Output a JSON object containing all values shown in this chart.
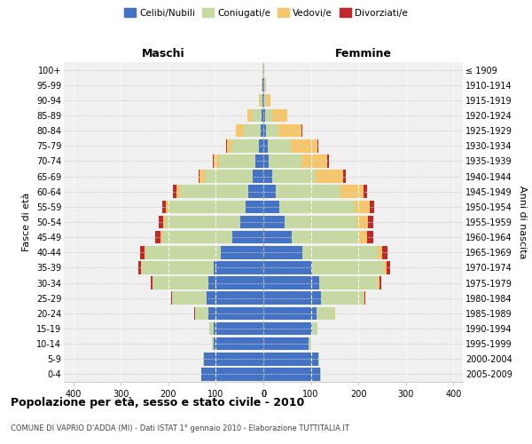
{
  "age_groups": [
    "0-4",
    "5-9",
    "10-14",
    "15-19",
    "20-24",
    "25-29",
    "30-34",
    "35-39",
    "40-44",
    "45-49",
    "50-54",
    "55-59",
    "60-64",
    "65-69",
    "70-74",
    "75-79",
    "80-84",
    "85-89",
    "90-94",
    "95-99",
    "100+"
  ],
  "birth_years": [
    "2005-2009",
    "2000-2004",
    "1995-1999",
    "1990-1994",
    "1985-1989",
    "1980-1984",
    "1975-1979",
    "1970-1974",
    "1965-1969",
    "1960-1964",
    "1955-1959",
    "1950-1954",
    "1945-1949",
    "1940-1944",
    "1935-1939",
    "1930-1934",
    "1925-1929",
    "1920-1924",
    "1915-1919",
    "1910-1914",
    "≤ 1909"
  ],
  "maschi": {
    "celibi": [
      130,
      125,
      105,
      105,
      115,
      120,
      115,
      105,
      90,
      65,
      48,
      38,
      32,
      22,
      16,
      10,
      5,
      3,
      1,
      1,
      0
    ],
    "coniugati": [
      1,
      2,
      3,
      8,
      28,
      72,
      118,
      152,
      158,
      148,
      158,
      162,
      143,
      102,
      78,
      57,
      37,
      22,
      6,
      2,
      1
    ],
    "vedovi": [
      0,
      0,
      0,
      0,
      1,
      1,
      1,
      1,
      2,
      3,
      5,
      5,
      8,
      10,
      10,
      10,
      16,
      8,
      2,
      1,
      0
    ],
    "divorziati": [
      0,
      0,
      0,
      0,
      1,
      2,
      3,
      5,
      10,
      12,
      10,
      8,
      8,
      3,
      2,
      1,
      0,
      0,
      0,
      0,
      0
    ]
  },
  "femmine": {
    "nubili": [
      120,
      115,
      95,
      102,
      112,
      122,
      118,
      102,
      82,
      60,
      44,
      34,
      26,
      18,
      12,
      10,
      5,
      3,
      1,
      1,
      0
    ],
    "coniugate": [
      2,
      3,
      5,
      12,
      38,
      88,
      122,
      152,
      158,
      142,
      152,
      158,
      136,
      92,
      68,
      48,
      26,
      15,
      5,
      2,
      1
    ],
    "vedove": [
      0,
      0,
      0,
      0,
      1,
      2,
      4,
      5,
      10,
      16,
      24,
      32,
      48,
      58,
      55,
      55,
      50,
      32,
      8,
      3,
      1
    ],
    "divorziate": [
      0,
      0,
      0,
      0,
      1,
      2,
      4,
      8,
      12,
      14,
      12,
      10,
      8,
      5,
      3,
      2,
      1,
      0,
      0,
      0,
      0
    ]
  },
  "colors": {
    "celibi_nubili": "#4472C4",
    "coniugati": "#C5D9A0",
    "vedovi": "#F5C76A",
    "divorziati": "#C0282A"
  },
  "xlim": 420,
  "title": "Popolazione per età, sesso e stato civile - 2010",
  "subtitle": "COMUNE DI VAPRIO D'ADDA (MI) - Dati ISTAT 1° gennaio 2010 - Elaborazione TUTTITALIA.IT",
  "ylabel_left": "Fasce di età",
  "ylabel_right": "Anni di nascita",
  "header_maschi": "Maschi",
  "header_femmine": "Femmine",
  "legend_labels": [
    "Celibi/Nubili",
    "Coniugati/e",
    "Vedovi/e",
    "Divorziati/e"
  ],
  "bar_height": 0.85
}
